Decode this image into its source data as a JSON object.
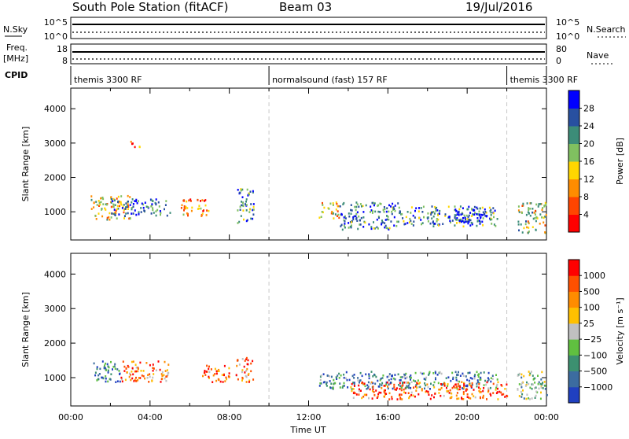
{
  "header": {
    "station": "South Pole Station (fitACF)",
    "beam": "Beam 03",
    "date": "19/Jul/2016"
  },
  "panels": {
    "nsky": {
      "label": "N.Sky",
      "left_ticks": [
        "10^5",
        "10^0"
      ],
      "right_ticks": [
        "10^5",
        "10^0"
      ],
      "right_label": "N.Search"
    },
    "freq": {
      "label_line1": "Freq.",
      "label_line2": "[MHz]",
      "left_ticks": [
        "18",
        "8"
      ],
      "right_ticks": [
        "80",
        "0"
      ],
      "right_label": "Nave"
    },
    "cpid": {
      "label": "CPID",
      "segments": [
        {
          "label": "themis 3300 RF",
          "start_hour": 0
        },
        {
          "label": "normalsound (fast) 157 RF",
          "start_hour": 10
        },
        {
          "label": "themis 3300 RF",
          "start_hour": 22
        }
      ]
    }
  },
  "chart_data": [
    {
      "type": "heatmap",
      "name": "power",
      "ylabel": "Slant Range [km]",
      "ylim": [
        180,
        4600
      ],
      "yticks": [
        1000,
        2000,
        3000,
        4000
      ],
      "xlim": [
        0,
        24
      ],
      "mode_change_hours": [
        10,
        22
      ],
      "colorbar": {
        "label": "Power [dB]",
        "ticks": [
          "28",
          "24",
          "20",
          "16",
          "12",
          "8",
          "4"
        ],
        "colors": [
          "#ff0000",
          "#ff4500",
          "#ff8c00",
          "#ffd700",
          "#80c060",
          "#3c8c78",
          "#2850a0",
          "#0000ff"
        ]
      },
      "regions": [
        {
          "x": [
            1.0,
            3.0
          ],
          "y": [
            800,
            1500
          ],
          "v": 0.4
        },
        {
          "x": [
            2.0,
            5.0
          ],
          "y": [
            900,
            1400
          ],
          "v": 0.8
        },
        {
          "x": [
            5.5,
            7.0
          ],
          "y": [
            900,
            1400
          ],
          "v": 0.3
        },
        {
          "x": [
            8.3,
            9.2
          ],
          "y": [
            700,
            1700
          ],
          "v": 0.75
        },
        {
          "x": [
            3.0,
            3.5
          ],
          "y": [
            2900,
            3100
          ],
          "v": 0.2
        },
        {
          "x": [
            12.5,
            13.5
          ],
          "y": [
            800,
            1300
          ],
          "v": 0.4
        },
        {
          "x": [
            13.5,
            16.5
          ],
          "y": [
            500,
            1300
          ],
          "v": 0.75
        },
        {
          "x": [
            16.5,
            21.5
          ],
          "y": [
            600,
            1200
          ],
          "v": 0.7
        },
        {
          "x": [
            19.0,
            21.0
          ],
          "y": [
            700,
            1100
          ],
          "v": 0.9
        },
        {
          "x": [
            22.5,
            24.0
          ],
          "y": [
            400,
            1300
          ],
          "v": 0.5
        }
      ]
    },
    {
      "type": "heatmap",
      "name": "velocity",
      "ylabel": "Slant Range [km]",
      "ylim": [
        180,
        4600
      ],
      "yticks": [
        1000,
        2000,
        3000,
        4000
      ],
      "xlim": [
        0,
        24
      ],
      "xticks": [
        "00:00",
        "04:00",
        "08:00",
        "12:00",
        "16:00",
        "20:00",
        "00:00"
      ],
      "xlabel": "Time UT",
      "mode_change_hours": [
        10,
        22
      ],
      "colorbar": {
        "label": "Velocity [m s⁻¹]",
        "ticks": [
          "1000",
          "500",
          "100",
          "25",
          "−25",
          "−100",
          "−500",
          "−1000"
        ],
        "colors": [
          "#2040c0",
          "#3c6ca0",
          "#3c9070",
          "#60c040",
          "#c0c0c0",
          "#ffc000",
          "#ff8c00",
          "#ff5000",
          "#ff0000"
        ]
      },
      "regions": [
        {
          "x": [
            1.0,
            2.5
          ],
          "y": [
            900,
            1500
          ],
          "v": 0.15
        },
        {
          "x": [
            2.5,
            5.0
          ],
          "y": [
            900,
            1500
          ],
          "v": 0.75
        },
        {
          "x": [
            6.5,
            8.0
          ],
          "y": [
            900,
            1400
          ],
          "v": 0.8
        },
        {
          "x": [
            8.3,
            9.2
          ],
          "y": [
            900,
            1600
          ],
          "v": 0.75
        },
        {
          "x": [
            12.5,
            16.0
          ],
          "y": [
            700,
            1200
          ],
          "v": 0.2
        },
        {
          "x": [
            14.0,
            18.0
          ],
          "y": [
            400,
            900
          ],
          "v": 0.8
        },
        {
          "x": [
            16.0,
            21.5
          ],
          "y": [
            700,
            1200
          ],
          "v": 0.25
        },
        {
          "x": [
            18.0,
            22.0
          ],
          "y": [
            400,
            900
          ],
          "v": 0.8
        },
        {
          "x": [
            22.5,
            24.0
          ],
          "y": [
            400,
            1200
          ],
          "v": 0.4
        }
      ]
    }
  ]
}
